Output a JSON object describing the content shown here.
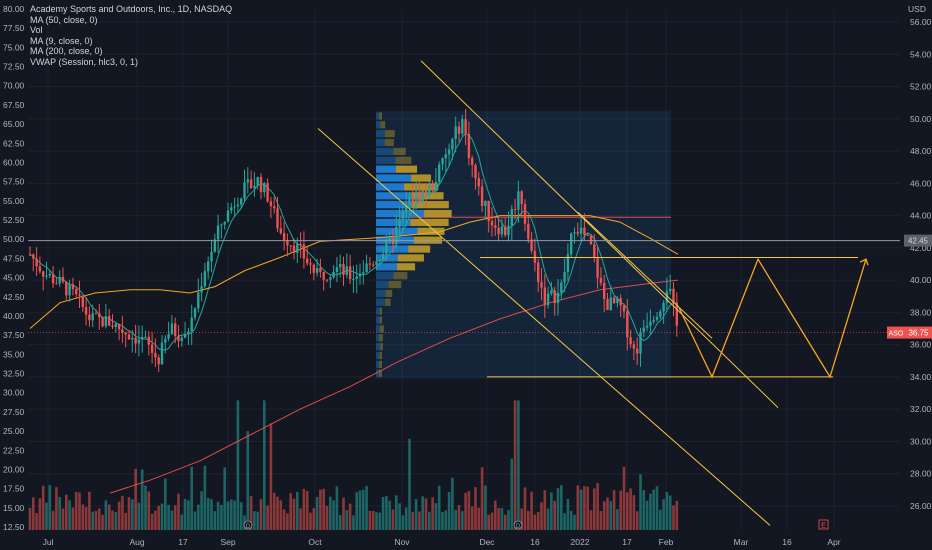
{
  "legend": {
    "title": "Academy Sports and Outdoors, Inc., 1D, NASDAQ",
    "lines": [
      "MA (50, close, 0)",
      "Vol",
      "MA (9, close, 0)",
      "MA (200, close, 0)",
      "VWAP (Session, hlc3, 0, 1)"
    ]
  },
  "currency": "USD",
  "price_tag": {
    "symbol": "ASO",
    "value": "36.75"
  },
  "level_tag": "42.45",
  "colors": {
    "background": "#131722",
    "up": "#26a69a",
    "down": "#ef5350",
    "ma9": "#26a69a",
    "ma50": "#f5a623",
    "ma200": "#e04a4a",
    "channel": "#f5c542",
    "projection": "#f5a623",
    "profile_up": "#1e88e5",
    "profile_down": "#c9a227"
  },
  "chart_data": {
    "type": "candlestick",
    "left_axis": {
      "label": "",
      "range": [
        12.5,
        80.0
      ],
      "ticks": [
        "80.00",
        "77.50",
        "75.00",
        "72.50",
        "70.00",
        "67.50",
        "65.00",
        "62.50",
        "60.00",
        "57.50",
        "55.00",
        "52.50",
        "50.00",
        "47.50",
        "45.00",
        "42.50",
        "40.00",
        "37.50",
        "35.00",
        "32.50",
        "30.00",
        "27.50",
        "25.00",
        "22.50",
        "20.00",
        "17.50",
        "15.00",
        "12.50"
      ]
    },
    "right_axis": {
      "label": "USD",
      "range": [
        24.7,
        56.0
      ],
      "ticks": [
        "56.00",
        "54.00",
        "52.00",
        "50.00",
        "48.00",
        "46.00",
        "44.00",
        "42.00",
        "40.00",
        "38.00",
        "36.00",
        "34.00",
        "32.00",
        "30.00",
        "28.00",
        "26.00"
      ]
    },
    "x_ticks": [
      "Jul",
      "Aug",
      "17",
      "Sep",
      "Oct",
      "Nov",
      "Dec",
      "16",
      "2022",
      "17",
      "Feb",
      "Mar",
      "16",
      "Apr"
    ],
    "last_price": 36.75,
    "horizontal_level": 42.45,
    "support_level": 34.0,
    "resistance_level": 41.4,
    "projection_path": [
      [
        38.2,
        "early Feb"
      ],
      [
        34.0,
        "late Feb"
      ],
      [
        41.3,
        "early Mar"
      ],
      [
        34.0,
        "late Mar"
      ],
      [
        41.3,
        "early Apr"
      ]
    ],
    "event_marker": "E",
    "dividend_markers": [
      "D",
      "D"
    ]
  }
}
